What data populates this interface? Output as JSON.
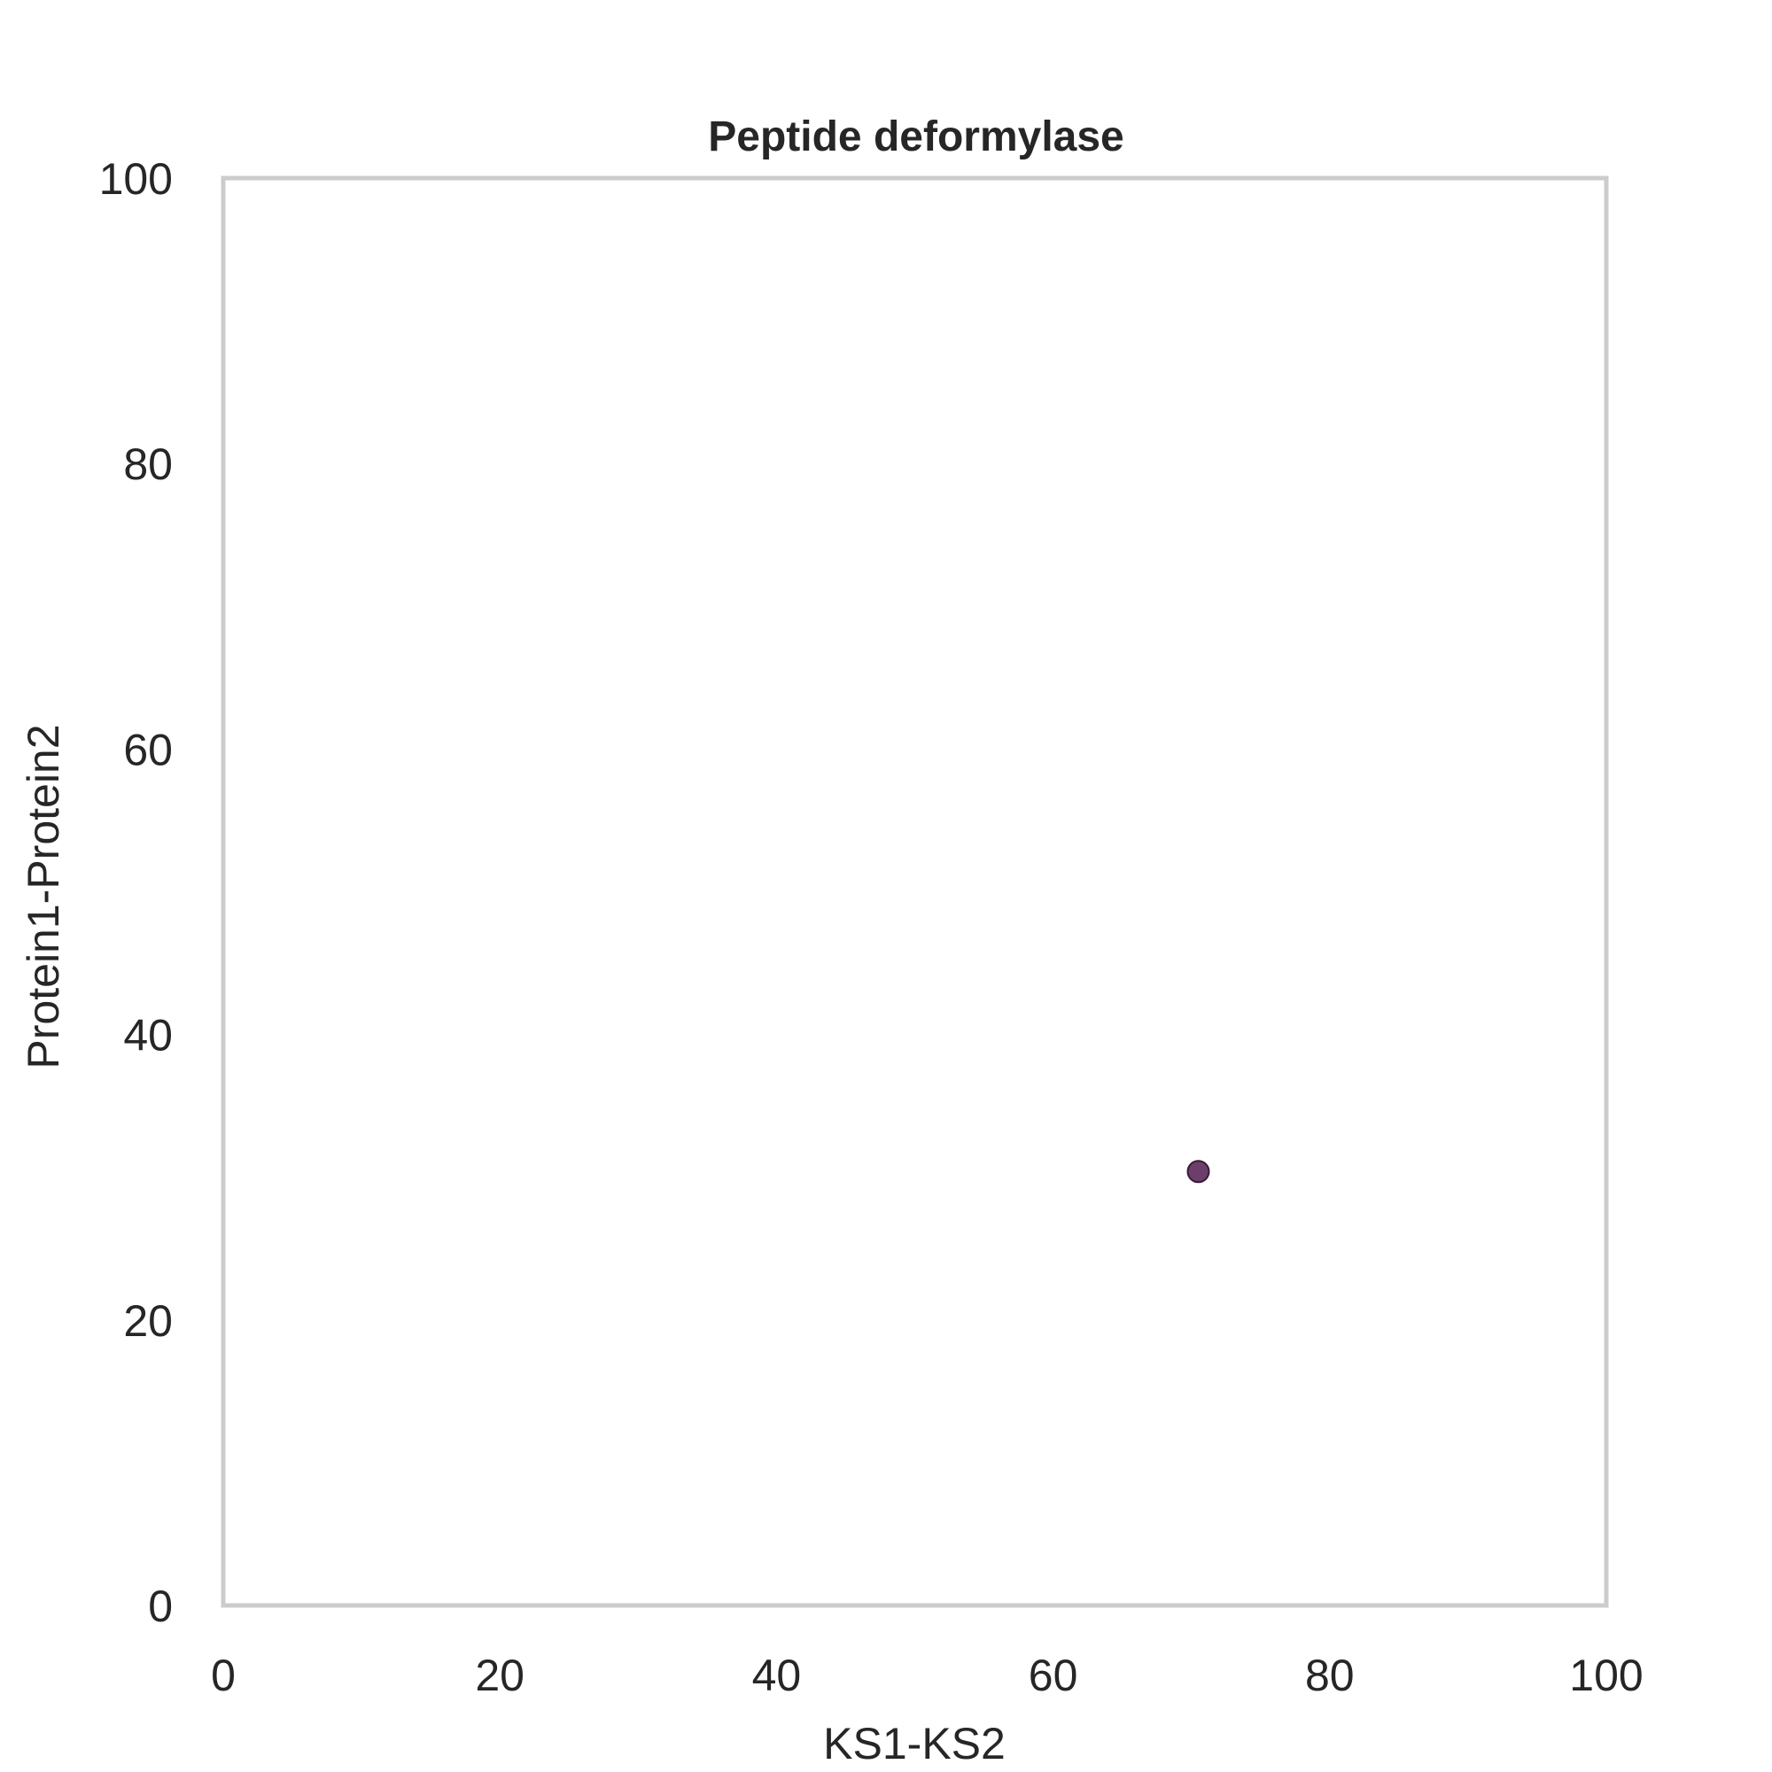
{
  "chart_data": {
    "type": "scatter",
    "title": "Peptide deformylase",
    "xlabel": "KS1-KS2",
    "ylabel": "Protein1-Protein2",
    "xlim": [
      0,
      100
    ],
    "ylim": [
      0,
      100
    ],
    "xticks": [
      "0",
      "20",
      "40",
      "60",
      "80",
      "100"
    ],
    "yticks": [
      "0",
      "20",
      "40",
      "60",
      "80",
      "100"
    ],
    "grid": false,
    "points": [
      {
        "x": 70.5,
        "y": 30.4
      }
    ],
    "colors": {
      "point_fill": "#5b2a5a",
      "point_edge": "#3a1a3a",
      "frame": "#cccccc",
      "text": "#262626"
    }
  }
}
